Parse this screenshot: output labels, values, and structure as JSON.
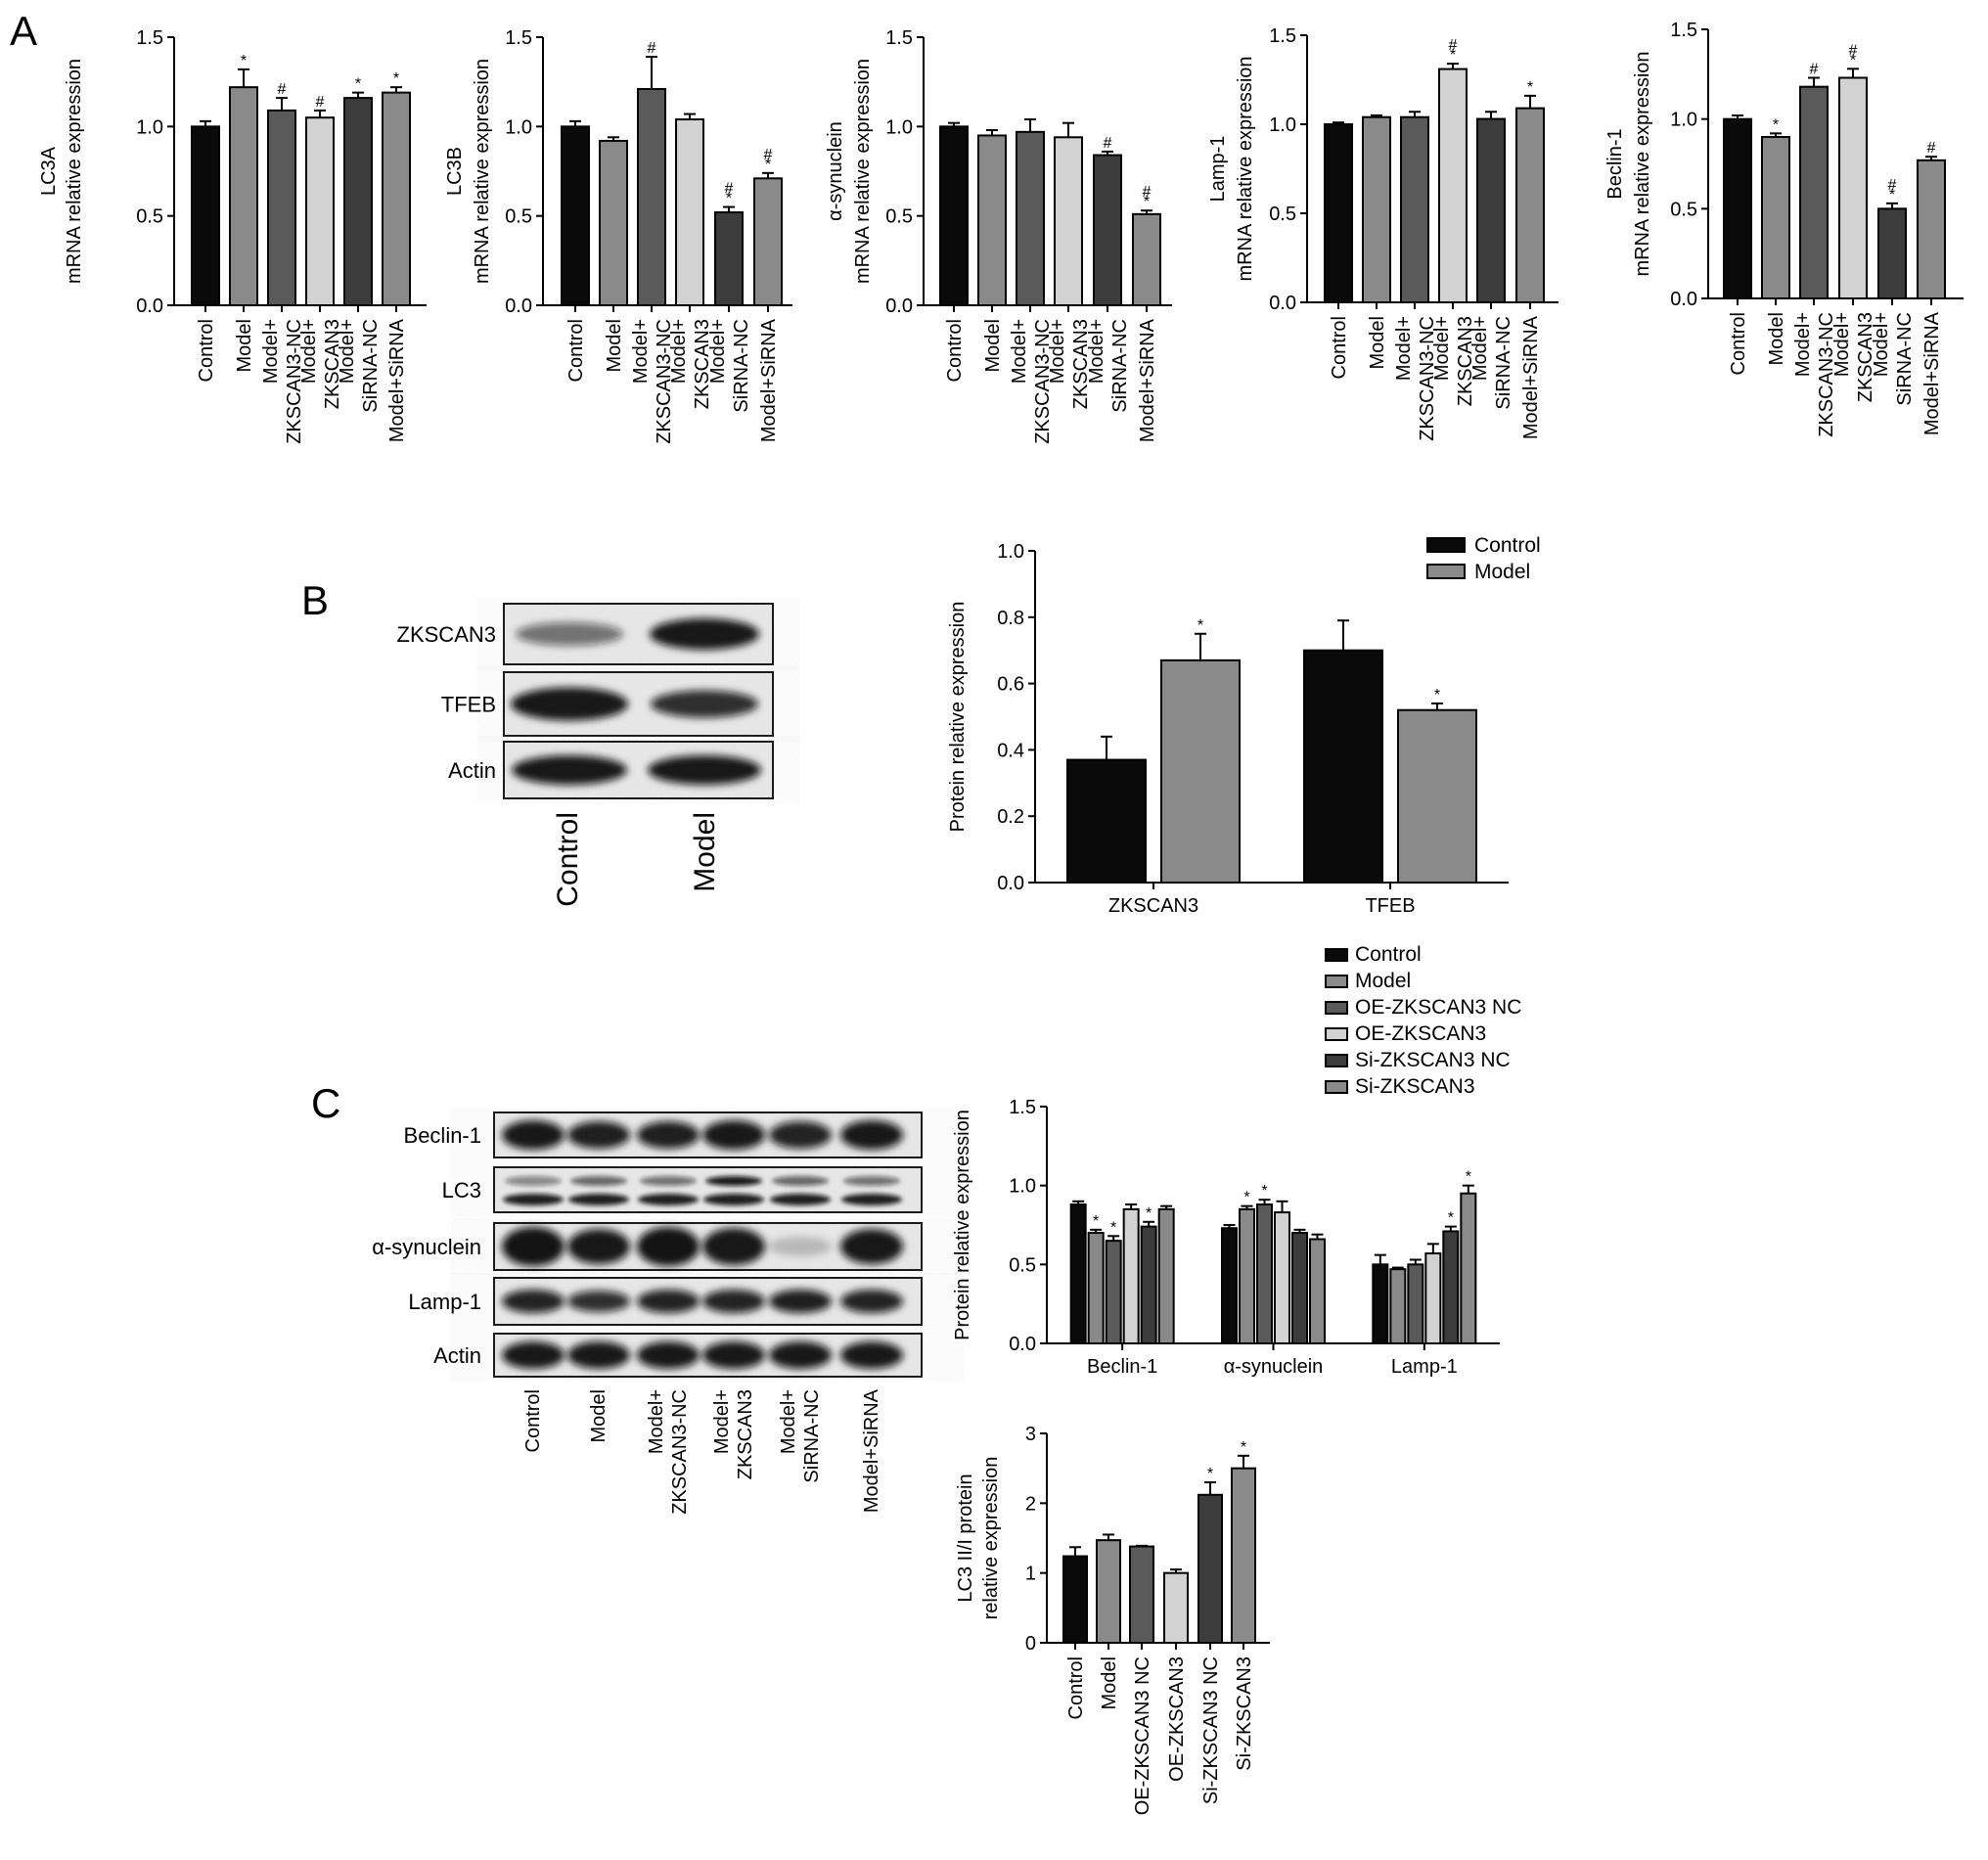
{
  "panel_labels": {
    "a": "A",
    "b": "B",
    "c": "C"
  },
  "colors": {
    "black": "#0a0a0a",
    "gray": "#808080",
    "dark_gray": "#5a5a5a",
    "light_gray": "#d2d2d2",
    "darker": "#3c3c3c",
    "mid": "#8a8a8a"
  },
  "blot_b": {
    "rows": [
      "ZKSCAN3",
      "TFEB",
      "Actin"
    ],
    "lanes": [
      "Control",
      "Model"
    ]
  },
  "blot_c": {
    "rows": [
      "Beclin-1",
      "LC3",
      "α-synuclein",
      "Lamp-1",
      "Actin"
    ],
    "lanes": [
      "Control",
      "Model",
      "Model+\nZKSCAN3-NC",
      "Model+\nZKSCAN3",
      "Model+\nSiRNA-NC",
      "Model+SiRNA"
    ]
  },
  "chart_data": [
    {
      "type": "bar",
      "panel": "A",
      "ylabel": [
        "LC3A",
        "mRNA relative expression"
      ],
      "ylim": [
        0,
        1.5
      ],
      "yticks": [
        "0.0",
        "0.5",
        "1.0",
        "1.5"
      ],
      "categories": [
        "Control",
        "Model",
        "Model+\nZKSCAN3-NC",
        "Model+\nZKSCAN3",
        "Model+\nSiRNA-NC",
        "Model+SiRNA"
      ],
      "values": [
        1.0,
        1.22,
        1.09,
        1.05,
        1.16,
        1.19
      ],
      "errors": [
        0.03,
        0.1,
        0.07,
        0.04,
        0.03,
        0.03
      ],
      "marks": [
        "",
        "*",
        "#",
        "#",
        "*",
        "*"
      ],
      "colors": [
        "#0a0a0a",
        "#8a8a8a",
        "#5a5a5a",
        "#d2d2d2",
        "#3c3c3c",
        "#8a8a8a"
      ]
    },
    {
      "type": "bar",
      "panel": "A",
      "ylabel": [
        "LC3B",
        "mRNA relative expression"
      ],
      "ylim": [
        0,
        1.5
      ],
      "yticks": [
        "0.0",
        "0.5",
        "1.0",
        "1.5"
      ],
      "categories": [
        "Control",
        "Model",
        "Model+\nZKSCAN3-NC",
        "Model+\nZKSCAN3",
        "Model+\nSiRNA-NC",
        "Model+SiRNA"
      ],
      "values": [
        1.0,
        0.92,
        1.21,
        1.04,
        0.52,
        0.71
      ],
      "errors": [
        0.03,
        0.02,
        0.18,
        0.03,
        0.03,
        0.03
      ],
      "marks": [
        "",
        "",
        "#",
        "",
        "#*",
        "#*"
      ],
      "colors": [
        "#0a0a0a",
        "#8a8a8a",
        "#5a5a5a",
        "#d2d2d2",
        "#3c3c3c",
        "#8a8a8a"
      ]
    },
    {
      "type": "bar",
      "panel": "A",
      "ylabel": [
        "α-synuclein",
        "mRNA relative expression"
      ],
      "ylim": [
        0,
        1.5
      ],
      "yticks": [
        "0.0",
        "0.5",
        "1.0",
        "1.5"
      ],
      "categories": [
        "Control",
        "Model",
        "Model+\nZKSCAN3-NC",
        "Model+\nZKSCAN3",
        "Model+\nSiRNA-NC",
        "Model+SiRNA"
      ],
      "values": [
        1.0,
        0.95,
        0.97,
        0.94,
        0.84,
        0.51
      ],
      "errors": [
        0.02,
        0.03,
        0.07,
        0.08,
        0.02,
        0.02
      ],
      "marks": [
        "",
        "",
        "",
        "",
        "#",
        "#*"
      ],
      "colors": [
        "#0a0a0a",
        "#8a8a8a",
        "#5a5a5a",
        "#d2d2d2",
        "#3c3c3c",
        "#8a8a8a"
      ]
    },
    {
      "type": "bar",
      "panel": "A",
      "ylabel": [
        "Lamp-1",
        "mRNA relative expression"
      ],
      "ylim": [
        0,
        1.5
      ],
      "yticks": [
        "0.0",
        "0.5",
        "1.0",
        "1.5"
      ],
      "categories": [
        "Control",
        "Model",
        "Model+\nZKSCAN3-NC",
        "Model+\nZKSCAN3",
        "Model+\nSiRNA-NC",
        "Model+SiRNA"
      ],
      "values": [
        1.0,
        1.04,
        1.04,
        1.31,
        1.03,
        1.09
      ],
      "errors": [
        0.01,
        0.01,
        0.03,
        0.03,
        0.04,
        0.07
      ],
      "marks": [
        "",
        "",
        "",
        "#*",
        "",
        "*"
      ],
      "colors": [
        "#0a0a0a",
        "#8a8a8a",
        "#5a5a5a",
        "#d2d2d2",
        "#3c3c3c",
        "#8a8a8a"
      ]
    },
    {
      "type": "bar",
      "panel": "A",
      "ylabel": [
        "Beclin-1",
        "mRNA relative expression"
      ],
      "ylim": [
        0,
        1.5
      ],
      "yticks": [
        "0.0",
        "0.5",
        "1.0",
        "1.5"
      ],
      "categories": [
        "Control",
        "Model",
        "Model+\nZKSCAN3-NC",
        "Model+\nZKSCAN3",
        "Model+\nSiRNA-NC",
        "Model+SiRNA"
      ],
      "values": [
        1.0,
        0.9,
        1.18,
        1.23,
        0.5,
        0.77
      ],
      "errors": [
        0.02,
        0.02,
        0.05,
        0.05,
        0.03,
        0.02
      ],
      "marks": [
        "",
        "*",
        "#",
        "#*",
        "#*",
        "#"
      ],
      "colors": [
        "#0a0a0a",
        "#8a8a8a",
        "#5a5a5a",
        "#d2d2d2",
        "#3c3c3c",
        "#8a8a8a"
      ]
    },
    {
      "type": "bar",
      "panel": "B",
      "ylabel": [
        "Protein relative expression"
      ],
      "ylim": [
        0,
        1.0
      ],
      "yticks": [
        "0.0",
        "0.2",
        "0.4",
        "0.6",
        "0.8",
        "1.0"
      ],
      "categories": [
        "ZKSCAN3",
        "TFEB"
      ],
      "legend": [
        "Control",
        "Model"
      ],
      "legend_position": "top-right",
      "series": [
        {
          "name": "Control",
          "values": [
            0.37,
            0.7
          ],
          "errors": [
            0.07,
            0.09
          ],
          "marks": [
            "",
            ""
          ],
          "color": "#0a0a0a"
        },
        {
          "name": "Model",
          "values": [
            0.67,
            0.52
          ],
          "errors": [
            0.08,
            0.02
          ],
          "marks": [
            "*",
            "*"
          ],
          "color": "#8a8a8a"
        }
      ]
    },
    {
      "type": "bar",
      "panel": "C",
      "ylabel": [
        "Protein relative expression"
      ],
      "ylim": [
        0,
        1.5
      ],
      "yticks": [
        "0.0",
        "0.5",
        "1.0",
        "1.5"
      ],
      "categories": [
        "Beclin-1",
        "α-synuclein",
        "Lamp-1"
      ],
      "legend": [
        "Control",
        "Model",
        "OE-ZKSCAN3 NC",
        "OE-ZKSCAN3",
        "Si-ZKSCAN3 NC",
        "Si-ZKSCAN3"
      ],
      "legend_position": "top",
      "series": [
        {
          "name": "Control",
          "values": [
            0.88,
            0.73,
            0.5
          ],
          "errors": [
            0.02,
            0.02,
            0.06
          ],
          "marks": [
            "",
            "",
            ""
          ],
          "color": "#0a0a0a"
        },
        {
          "name": "Model",
          "values": [
            0.7,
            0.85,
            0.47
          ],
          "errors": [
            0.02,
            0.02,
            0.01
          ],
          "marks": [
            "*",
            "*",
            ""
          ],
          "color": "#8a8a8a"
        },
        {
          "name": "OE-ZKSCAN3 NC",
          "values": [
            0.65,
            0.88,
            0.5
          ],
          "errors": [
            0.03,
            0.03,
            0.03
          ],
          "marks": [
            "*",
            "*",
            ""
          ],
          "color": "#5a5a5a"
        },
        {
          "name": "OE-ZKSCAN3",
          "values": [
            0.85,
            0.83,
            0.57
          ],
          "errors": [
            0.03,
            0.07,
            0.06
          ],
          "marks": [
            "",
            "",
            ""
          ],
          "color": "#d2d2d2"
        },
        {
          "name": "Si-ZKSCAN3 NC",
          "values": [
            0.74,
            0.7,
            0.71
          ],
          "errors": [
            0.03,
            0.02,
            0.03
          ],
          "marks": [
            "*",
            "",
            "*"
          ],
          "color": "#3c3c3c"
        },
        {
          "name": "Si-ZKSCAN3",
          "values": [
            0.85,
            0.66,
            0.95
          ],
          "errors": [
            0.02,
            0.03,
            0.05
          ],
          "marks": [
            "",
            "",
            "*"
          ],
          "color": "#8a8a8a"
        }
      ]
    },
    {
      "type": "bar",
      "panel": "C",
      "ylabel": [
        "LC3 II/I protein",
        "relative expression"
      ],
      "ylim": [
        0,
        3
      ],
      "yticks": [
        "0",
        "1",
        "2",
        "3"
      ],
      "categories": [
        "Control",
        "Model",
        "OE-ZKSCAN3 NC",
        "OE-ZKSCAN3",
        "Si-ZKSCAN3 NC",
        "Si-ZKSCAN3"
      ],
      "values": [
        1.24,
        1.47,
        1.38,
        1.0,
        2.12,
        2.5
      ],
      "errors": [
        0.13,
        0.08,
        0.01,
        0.05,
        0.18,
        0.18
      ],
      "marks": [
        "",
        "",
        "",
        "",
        "*",
        "*"
      ],
      "colors": [
        "#0a0a0a",
        "#8a8a8a",
        "#5a5a5a",
        "#d2d2d2",
        "#3c3c3c",
        "#8a8a8a"
      ]
    }
  ]
}
